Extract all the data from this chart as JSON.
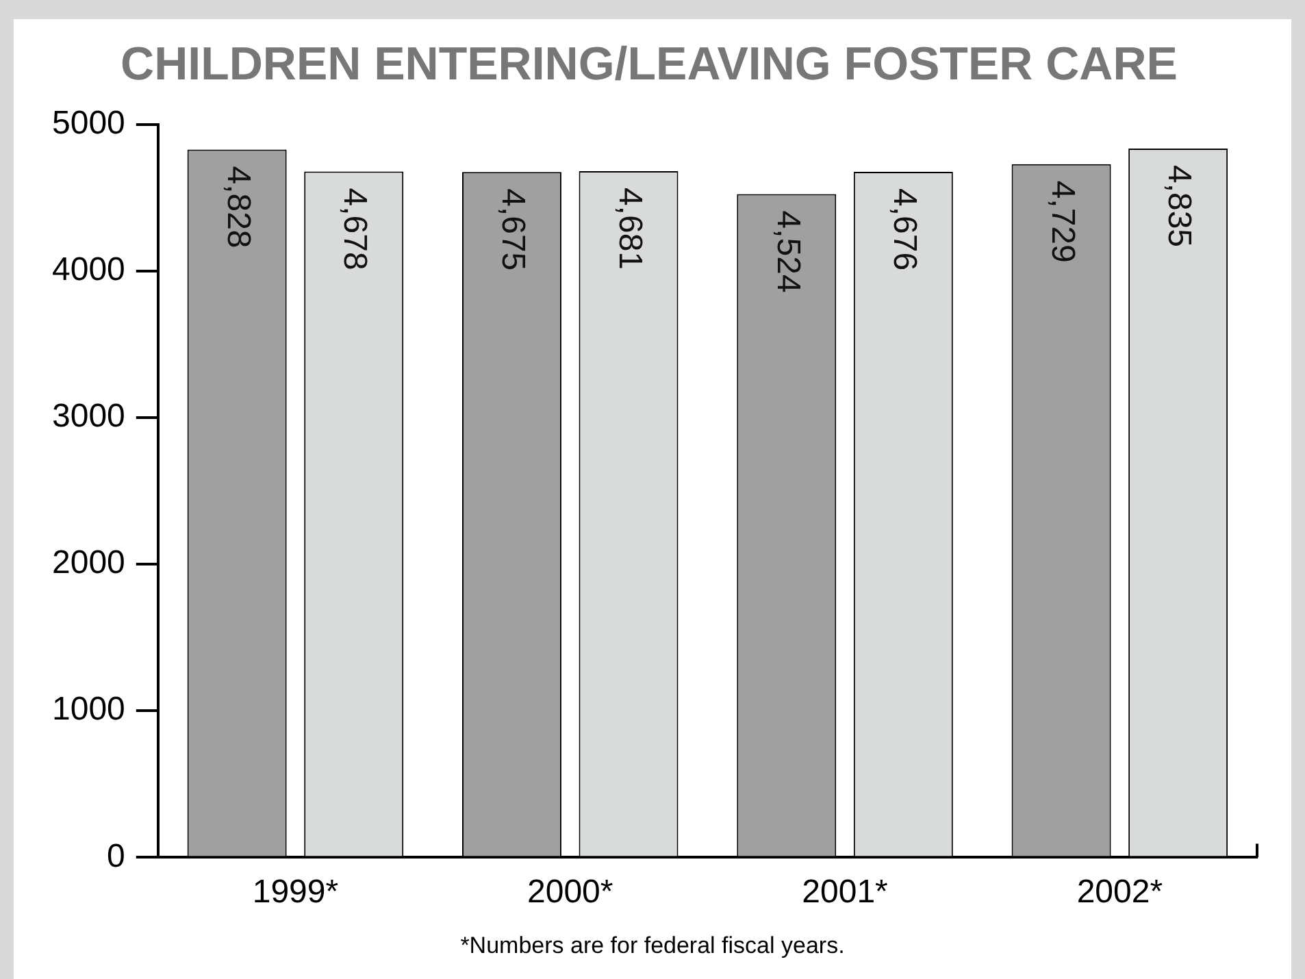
{
  "chart_data": {
    "type": "bar",
    "title": "CHILDREN ENTERING/LEAVING FOSTER CARE",
    "categories": [
      "1999*",
      "2000*",
      "2001*",
      "2002*"
    ],
    "series": [
      {
        "color": "#a0a0a0",
        "values": [
          4828,
          4675,
          4524,
          4729
        ],
        "value_labels": [
          "4,828",
          "4,675",
          "4,524",
          "4,729"
        ]
      },
      {
        "color": "#d9dbda",
        "values": [
          4678,
          4681,
          4676,
          4835
        ],
        "value_labels": [
          "4,678",
          "4,681",
          "4,676",
          "4,835"
        ]
      }
    ],
    "ylim": [
      0,
      5000
    ],
    "yticks": [
      0,
      1000,
      2000,
      3000,
      4000,
      5000
    ],
    "grid": false,
    "legend": false,
    "annotations": [
      "*Numbers are for federal fiscal years."
    ]
  }
}
